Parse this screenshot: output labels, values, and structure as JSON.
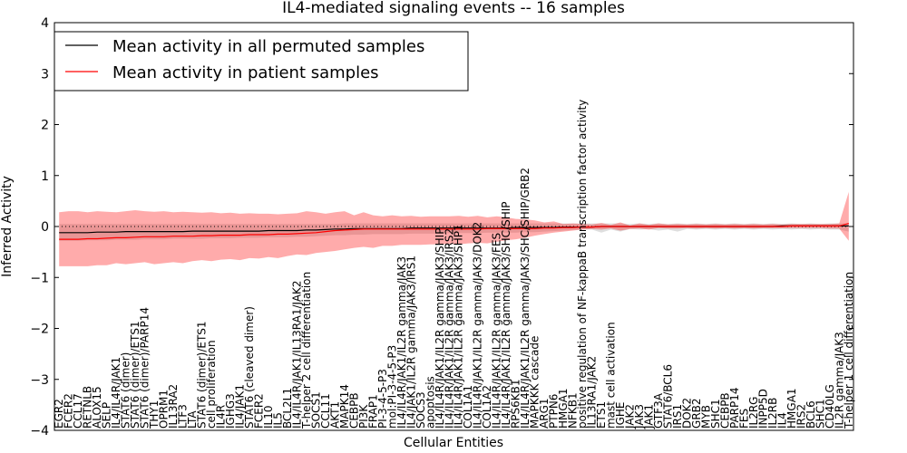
{
  "chart_data": {
    "type": "line",
    "title": "IL4-mediated signaling events -- 16 samples",
    "xlabel": "Cellular Entities",
    "ylabel": "Inferred Activity",
    "ylim": [
      -4,
      4
    ],
    "yticks": [
      -4,
      -3,
      -2,
      -1,
      0,
      1,
      2,
      3,
      4
    ],
    "ytick_labels": [
      "−4",
      "−3",
      "−2",
      "−1",
      "0",
      "1",
      "2",
      "3",
      "4"
    ],
    "legend": {
      "position": "top-left",
      "entries": [
        {
          "label": "Mean activity in all permuted samples",
          "color": "#000000"
        },
        {
          "label": "Mean activity in patient samples",
          "color": "#ff0000"
        }
      ]
    },
    "categories": [
      "EGR2",
      "FCER2",
      "CCL17",
      "RETNLB",
      "ALOX15",
      "SELP",
      "IL4/IL4R/JAK1",
      "STAT6 (dimer)",
      "STAT6 (dimer)/ETS1",
      "STAT6 (dimer)/PARP14",
      "THY1",
      "OPRM1",
      "IL13RA2",
      "LTF3",
      "LTA",
      "STAT6 (dimer)/ETS1",
      "cell proliferation",
      "IL4R",
      "IGHG3",
      "IL4/JAK1",
      "STAT6 (cleaved dimer)",
      "FCER2",
      "IL10",
      "IL5",
      "BCL2L1",
      "IL4/IL4R/JAK1/IL13RA1/JAK2",
      "T-helper 2 cell differentiation",
      "SOCS1",
      "CCL11",
      "AKT1",
      "MAPK14",
      "CEBPB",
      "PI3K",
      "FRAP1",
      "PI-3-4-5-P3",
      "mol:PI-3-4-5-P3",
      "IL4/IL4R/JAK1/IL2R gamma/JAK3",
      "IL4/JAK1/IL2R gamma/JAK3/IRS1",
      "SOCS3",
      "apoptosis",
      "IL4/IL4R/JAK1/IL2R gamma/JAK3/SHIP",
      "IL4/IL4R/JAK1/IL2R gamma/JAK3/IRS2",
      "IL4/IL4R/JAK1/IL2R gamma/JAK3/SHP1",
      "COL1A1",
      "IL4/IL4R/JAK1/IL2R gamma/JAK3/DOK2",
      "COL1A2",
      "IL4/IL4R/JAK1/IL2R gamma/JAK3/FES",
      "IL4/IL4R/JAK1/IL2R gamma/JAK3/SHC/SHIP",
      "RPS6KB1",
      "IL4/IL4R/JAK1/IL2R gamma/JAK3/SHC/SHIP/GRB2",
      "MAPKKK cascade",
      "ARG1",
      "PTPN6",
      "HMGA1",
      "NFKB1",
      "positive regulation of NF-kappaB transcription factor activity",
      "IL13RA1/JAK2",
      "ETS1",
      "mast cell activation",
      "IGHE",
      "JAK2",
      "JAK3",
      "JAK1",
      "GTF3A",
      "STAT6/BCL6",
      "IRS1",
      "DOK2",
      "GRB2",
      "MYB",
      "SHC1",
      "CEBPB",
      "PARP14",
      "FES",
      "IL2RG",
      "INPP5D",
      "IL2RB",
      "IL4",
      "HMGA1",
      "IRS2",
      "BCL6",
      "SHC1",
      "CD40LG",
      "IL2R gamma/JAK3",
      "T-helper 1 cell differentiation"
    ],
    "series": [
      {
        "name": "Mean activity in patient samples",
        "color": "#ff0000",
        "values": [
          -0.25,
          -0.25,
          -0.25,
          -0.24,
          -0.24,
          -0.23,
          -0.22,
          -0.22,
          -0.21,
          -0.2,
          -0.2,
          -0.2,
          -0.19,
          -0.19,
          -0.19,
          -0.18,
          -0.18,
          -0.17,
          -0.17,
          -0.17,
          -0.16,
          -0.16,
          -0.16,
          -0.15,
          -0.15,
          -0.14,
          -0.13,
          -0.12,
          -0.1,
          -0.08,
          -0.07,
          -0.06,
          -0.05,
          -0.05,
          -0.05,
          -0.05,
          -0.05,
          -0.05,
          -0.05,
          -0.05,
          -0.05,
          -0.05,
          -0.05,
          -0.05,
          -0.05,
          -0.04,
          -0.04,
          -0.04,
          -0.04,
          -0.04,
          -0.04,
          -0.03,
          -0.03,
          -0.02,
          -0.02,
          -0.01,
          -0.01,
          0.0,
          0.0,
          0.0,
          0.0,
          0.0,
          0.0,
          0.0,
          0.0,
          0.0,
          0.0,
          0.0,
          0.0,
          0.0,
          0.0,
          0.0,
          0.0,
          0.0,
          0.0,
          0.0,
          0.0,
          0.01,
          0.01,
          0.01,
          0.01,
          0.01,
          0.01,
          0.06
        ],
        "band_upper": [
          0.28,
          0.3,
          0.3,
          0.28,
          0.3,
          0.29,
          0.28,
          0.3,
          0.32,
          0.3,
          0.29,
          0.3,
          0.28,
          0.29,
          0.28,
          0.27,
          0.28,
          0.26,
          0.27,
          0.25,
          0.26,
          0.25,
          0.25,
          0.24,
          0.25,
          0.26,
          0.3,
          0.28,
          0.25,
          0.28,
          0.3,
          0.22,
          0.28,
          0.22,
          0.2,
          0.22,
          0.2,
          0.21,
          0.19,
          0.2,
          0.2,
          0.2,
          0.21,
          0.19,
          0.21,
          0.18,
          0.2,
          0.18,
          0.15,
          0.14,
          0.12,
          0.08,
          0.1,
          0.05,
          0.06,
          0.05,
          0.04,
          0.07,
          0.03,
          0.08,
          0.02,
          0.06,
          0.03,
          0.06,
          0.04,
          0.05,
          0.04,
          0.05,
          0.04,
          0.05,
          0.04,
          0.05,
          0.04,
          0.05,
          0.04,
          0.05,
          0.04,
          0.05,
          0.05,
          0.05,
          0.05,
          0.05,
          0.06,
          0.68
        ],
        "band_lower": [
          -0.78,
          -0.78,
          -0.78,
          -0.78,
          -0.76,
          -0.76,
          -0.72,
          -0.74,
          -0.72,
          -0.7,
          -0.74,
          -0.72,
          -0.7,
          -0.72,
          -0.68,
          -0.66,
          -0.68,
          -0.65,
          -0.64,
          -0.66,
          -0.62,
          -0.63,
          -0.6,
          -0.62,
          -0.58,
          -0.55,
          -0.56,
          -0.52,
          -0.5,
          -0.48,
          -0.45,
          -0.42,
          -0.4,
          -0.42,
          -0.38,
          -0.38,
          -0.36,
          -0.36,
          -0.36,
          -0.35,
          -0.35,
          -0.34,
          -0.35,
          -0.33,
          -0.32,
          -0.33,
          -0.3,
          -0.27,
          -0.25,
          -0.22,
          -0.18,
          -0.15,
          -0.12,
          -0.1,
          -0.08,
          -0.06,
          -0.05,
          -0.06,
          -0.04,
          -0.08,
          -0.05,
          -0.04,
          -0.06,
          -0.03,
          -0.04,
          -0.04,
          -0.03,
          -0.04,
          -0.03,
          -0.04,
          -0.03,
          -0.04,
          -0.03,
          -0.04,
          -0.03,
          -0.03,
          -0.03,
          -0.03,
          -0.03,
          -0.03,
          -0.03,
          -0.04,
          -0.04,
          -0.28
        ]
      },
      {
        "name": "Mean activity in all permuted samples",
        "color": "#000000",
        "values": [
          -0.12,
          -0.12,
          -0.12,
          -0.12,
          -0.11,
          -0.11,
          -0.11,
          -0.1,
          -0.1,
          -0.1,
          -0.1,
          -0.1,
          -0.1,
          -0.1,
          -0.09,
          -0.09,
          -0.09,
          -0.09,
          -0.09,
          -0.09,
          -0.09,
          -0.09,
          -0.08,
          -0.08,
          -0.08,
          -0.08,
          -0.07,
          -0.07,
          -0.06,
          -0.05,
          -0.05,
          -0.04,
          -0.04,
          -0.04,
          -0.04,
          -0.04,
          -0.04,
          -0.03,
          -0.03,
          -0.03,
          -0.03,
          -0.03,
          -0.03,
          -0.03,
          -0.03,
          -0.03,
          -0.03,
          -0.03,
          -0.02,
          -0.02,
          -0.02,
          -0.02,
          -0.02,
          -0.01,
          -0.01,
          -0.01,
          -0.01,
          0.0,
          0.0,
          0.0,
          0.0,
          0.0,
          0.0,
          0.0,
          0.0,
          0.0,
          0.0,
          0.0,
          0.0,
          0.0,
          0.0,
          0.0,
          0.0,
          0.0,
          0.0,
          0.0,
          0.01,
          0.01,
          0.01,
          0.01,
          0.01,
          0.01,
          0.01,
          0.01
        ],
        "band_upper": [
          0.05,
          0.05,
          0.05,
          0.05,
          0.05,
          0.05,
          0.05,
          0.05,
          0.05,
          0.05,
          0.05,
          0.05,
          0.05,
          0.05,
          0.05,
          0.05,
          0.05,
          0.05,
          0.05,
          0.05,
          0.05,
          0.05,
          0.05,
          0.05,
          0.05,
          0.05,
          0.05,
          0.05,
          0.05,
          0.05,
          0.06,
          0.06,
          0.06,
          0.06,
          0.06,
          0.06,
          0.06,
          0.06,
          0.06,
          0.06,
          0.06,
          0.06,
          0.06,
          0.06,
          0.06,
          0.06,
          0.06,
          0.06,
          0.06,
          0.06,
          0.06,
          0.06,
          0.06,
          0.06,
          0.06,
          0.06,
          0.06,
          0.06,
          0.06,
          0.06,
          0.05,
          0.06,
          0.05,
          0.06,
          0.05,
          0.06,
          0.05,
          0.06,
          0.05,
          0.06,
          0.05,
          0.06,
          0.05,
          0.06,
          0.05,
          0.06,
          0.05,
          0.06,
          0.05,
          0.06,
          0.05,
          0.06,
          0.06,
          0.06
        ],
        "band_lower": [
          -0.28,
          -0.28,
          -0.28,
          -0.27,
          -0.27,
          -0.27,
          -0.26,
          -0.26,
          -0.26,
          -0.25,
          -0.25,
          -0.25,
          -0.24,
          -0.24,
          -0.24,
          -0.24,
          -0.23,
          -0.23,
          -0.23,
          -0.22,
          -0.22,
          -0.22,
          -0.21,
          -0.21,
          -0.21,
          -0.2,
          -0.2,
          -0.19,
          -0.18,
          -0.17,
          -0.17,
          -0.16,
          -0.16,
          -0.15,
          -0.15,
          -0.15,
          -0.15,
          -0.14,
          -0.14,
          -0.14,
          -0.14,
          -0.13,
          -0.13,
          -0.13,
          -0.13,
          -0.12,
          -0.12,
          -0.12,
          -0.12,
          -0.11,
          -0.11,
          -0.1,
          -0.09,
          -0.08,
          -0.07,
          -0.06,
          -0.06,
          -0.12,
          -0.06,
          -0.1,
          -0.05,
          -0.06,
          -0.05,
          -0.08,
          -0.06,
          -0.1,
          -0.05,
          -0.06,
          -0.05,
          -0.06,
          -0.05,
          -0.06,
          -0.05,
          -0.06,
          -0.05,
          -0.06,
          -0.05,
          -0.06,
          -0.05,
          -0.06,
          -0.05,
          -0.06,
          -0.06,
          -0.1
        ]
      }
    ]
  }
}
